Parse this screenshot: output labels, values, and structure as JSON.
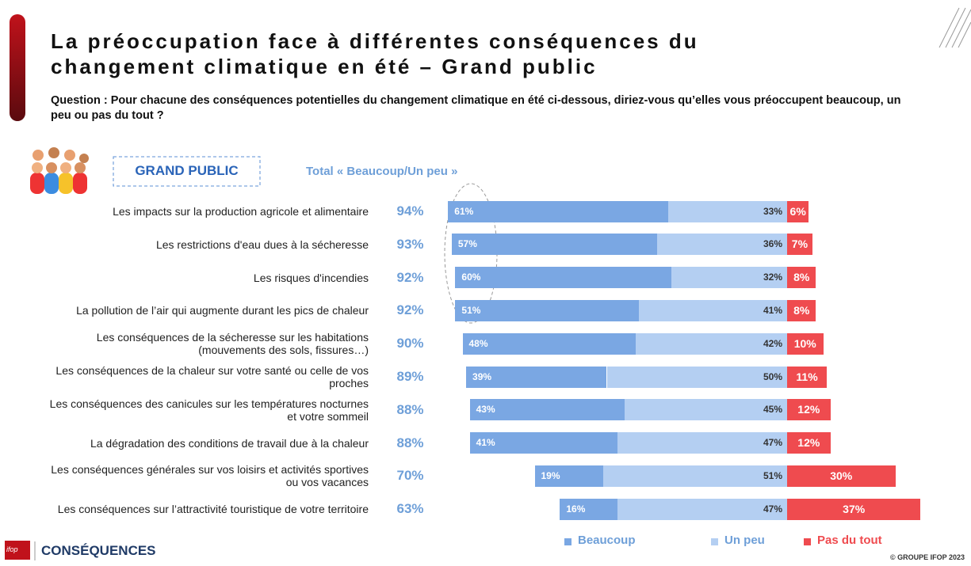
{
  "chart_data": {
    "type": "diverging_bar",
    "title": "La préoccupation face à différentes conséquences du changement climatique en été – Grand public",
    "subtitle": "Question : Pour chacune des conséquences potentielles du changement climatique en été ci-dessous, diriez-vous qu’elles vous préoccupent beaucoup, un peu ou pas du tout ?",
    "group_label": "Grand public",
    "totals_title": "Total « Beaucoup/Un peu »",
    "categories": [
      "Les impacts sur la production agricole et alimentaire",
      "Les restrictions d'eau dues à la sécheresse",
      "Les risques d'incendies",
      "La pollution de l’air qui augmente durant les pics de chaleur",
      "Les conséquences de la sécheresse sur les habitations (mouvements des sols, fissures…)",
      "Les conséquences de la chaleur sur votre santé ou celle de vos proches",
      "Les conséquences des canicules sur les températures nocturnes et votre sommeil",
      "La dégradation des conditions de travail due à la chaleur",
      "Les conséquences générales sur vos loisirs et activités sportives ou vos vacances",
      "Les conséquences sur l’attractivité touristique de votre territoire"
    ],
    "totals": [
      94,
      93,
      92,
      92,
      90,
      89,
      88,
      88,
      70,
      63
    ],
    "totals_labels": [
      "94%",
      "93%",
      "92%",
      "92%",
      "90%",
      "89%",
      "88%",
      "88%",
      "70%",
      "63%"
    ],
    "series": [
      {
        "name": "Beaucoup",
        "color": "#7aa7e3",
        "values": [
          61,
          57,
          60,
          51,
          48,
          39,
          43,
          41,
          19,
          16
        ],
        "value_labels": [
          "61%",
          "57%",
          "60%",
          "51%",
          "48%",
          "39%",
          "43%",
          "41%",
          "19%",
          "16%"
        ]
      },
      {
        "name": "Un peu",
        "color": "#b4cff2",
        "values": [
          33,
          36,
          32,
          41,
          42,
          50,
          45,
          47,
          51,
          47
        ],
        "value_labels": [
          "33%",
          "36%",
          "32%",
          "41%",
          "42%",
          "50%",
          "45%",
          "47%",
          "51%",
          "47%"
        ]
      },
      {
        "name": "Pas du tout",
        "color": "#ef4b4f",
        "values": [
          6,
          7,
          8,
          8,
          10,
          11,
          12,
          12,
          30,
          37
        ],
        "value_labels": [
          "6%",
          "7%",
          "8%",
          "8%",
          "10%",
          "11%",
          "12%",
          "12%",
          "30%",
          "37%"
        ]
      }
    ],
    "footer": "© GROUPE IFOP 2023",
    "logo": "CONSÉQUENCES",
    "brand": "ifop"
  }
}
